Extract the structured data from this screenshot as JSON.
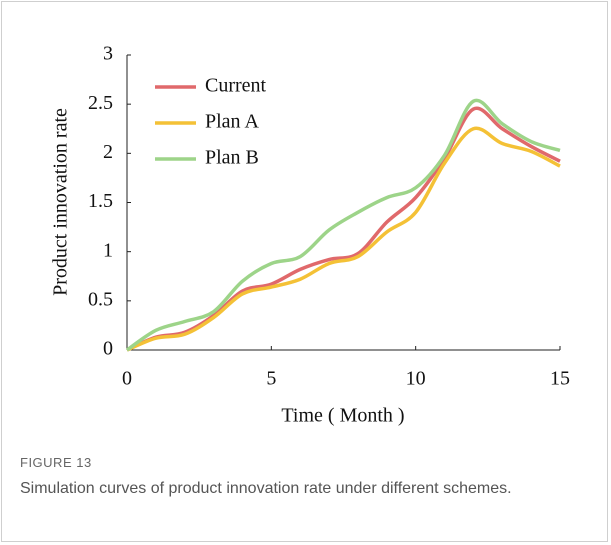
{
  "chart_data": {
    "type": "line",
    "x": [
      0,
      1,
      2,
      3,
      4,
      5,
      6,
      7,
      8,
      9,
      10,
      11,
      12,
      13,
      14,
      15
    ],
    "series": [
      {
        "name": "Current",
        "color": "#e0696b",
        "values": [
          0,
          0.13,
          0.18,
          0.35,
          0.6,
          0.67,
          0.82,
          0.92,
          0.98,
          1.3,
          1.55,
          1.95,
          2.45,
          2.25,
          2.07,
          1.92
        ]
      },
      {
        "name": "Plan A",
        "color": "#f4c136",
        "values": [
          0,
          0.12,
          0.16,
          0.33,
          0.57,
          0.64,
          0.72,
          0.88,
          0.95,
          1.2,
          1.4,
          1.9,
          2.25,
          2.1,
          2.02,
          1.87
        ]
      },
      {
        "name": "Plan B",
        "color": "#9dd489",
        "values": [
          0,
          0.2,
          0.29,
          0.39,
          0.7,
          0.88,
          0.95,
          1.22,
          1.4,
          1.55,
          1.65,
          1.98,
          2.53,
          2.3,
          2.12,
          2.03
        ]
      }
    ],
    "xlim": [
      0,
      15
    ],
    "xticks": [
      0,
      5,
      10,
      15
    ],
    "ylim": [
      0,
      3
    ],
    "yticks": [
      0,
      0.5,
      1,
      1.5,
      2,
      2.5,
      3
    ],
    "xlabel": "Time ( Month )",
    "ylabel": "Product innovation rate",
    "legend": "upper left"
  },
  "caption": {
    "label": "FIGURE 13",
    "text": "Simulation curves of product innovation rate under different schemes."
  }
}
